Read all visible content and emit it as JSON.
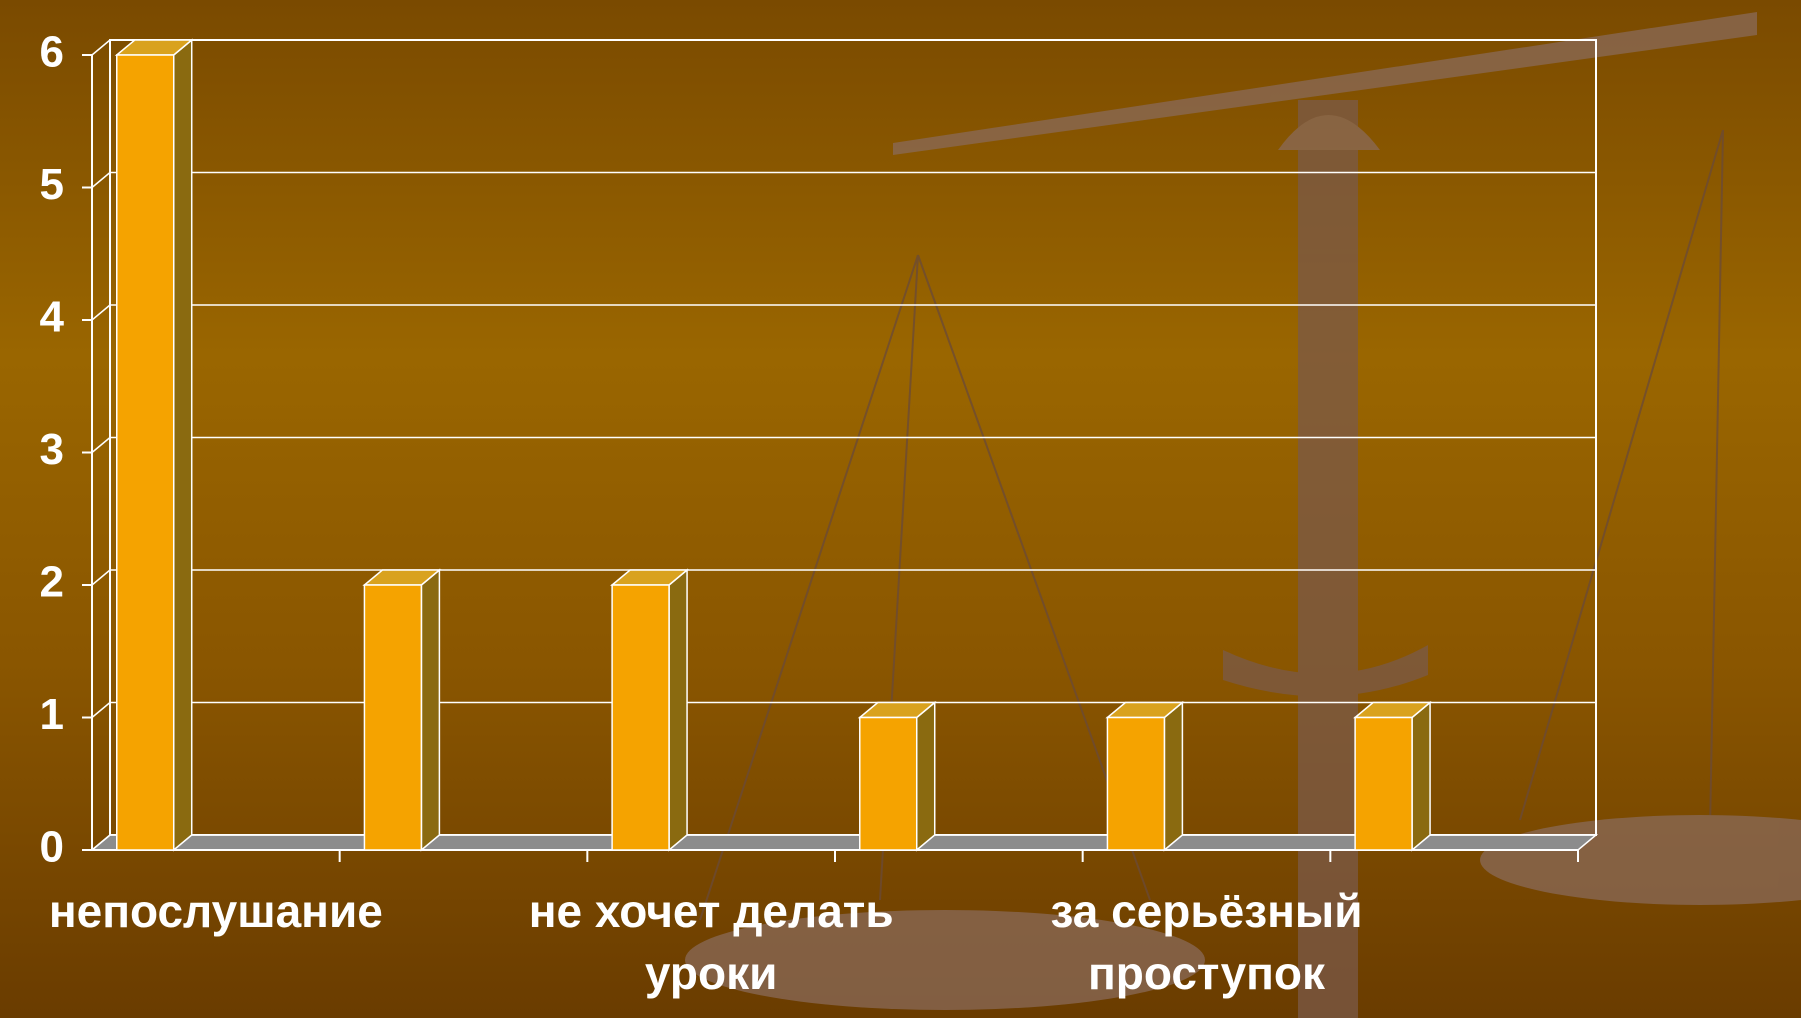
{
  "chart_data": {
    "type": "bar3d",
    "categories": [
      "непослушание",
      null,
      "не хочет делать уроки",
      null,
      "за серьёзный проступок",
      null
    ],
    "values": [
      6,
      2,
      2,
      1,
      1,
      1
    ],
    "color": "#f5a300",
    "ylim": [
      0,
      6
    ],
    "yticks": [
      0,
      1,
      2,
      3,
      4,
      5,
      6
    ],
    "grid": true
  }
}
